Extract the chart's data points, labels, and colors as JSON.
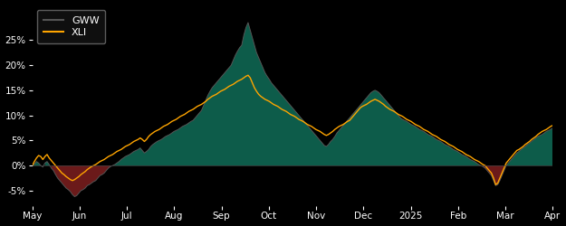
{
  "background_color": "#000000",
  "plot_bg_color": "#000000",
  "gww_color": "#555555",
  "xli_color": "#FFA500",
  "fill_positive_color": "#0d5c4a",
  "fill_negative_color": "#6b1a1a",
  "zero_line_color": "#444444",
  "legend_gww": "GWW",
  "legend_xli": "XLI",
  "x_tick_labels": [
    "May",
    "Jun",
    "Jul",
    "Aug",
    "Sep",
    "Oct",
    "Nov",
    "Dec",
    "2025",
    "Feb",
    "Mar",
    "Apr"
  ],
  "ylim": [
    -0.08,
    0.32
  ],
  "yticks": [
    -0.05,
    0.0,
    0.05,
    0.1,
    0.15,
    0.2,
    0.25
  ],
  "gww_data": [
    0.0,
    0.003,
    0.008,
    0.005,
    0.0,
    -0.003,
    0.005,
    0.008,
    0.002,
    -0.005,
    -0.01,
    -0.018,
    -0.025,
    -0.03,
    -0.035,
    -0.04,
    -0.045,
    -0.048,
    -0.052,
    -0.058,
    -0.062,
    -0.06,
    -0.055,
    -0.05,
    -0.048,
    -0.045,
    -0.04,
    -0.038,
    -0.035,
    -0.032,
    -0.03,
    -0.025,
    -0.02,
    -0.018,
    -0.015,
    -0.01,
    -0.005,
    -0.002,
    0.0,
    0.002,
    0.005,
    0.008,
    0.012,
    0.015,
    0.018,
    0.02,
    0.022,
    0.025,
    0.028,
    0.03,
    0.032,
    0.035,
    0.03,
    0.025,
    0.028,
    0.032,
    0.038,
    0.042,
    0.045,
    0.048,
    0.05,
    0.052,
    0.055,
    0.058,
    0.06,
    0.062,
    0.065,
    0.068,
    0.07,
    0.072,
    0.075,
    0.078,
    0.08,
    0.082,
    0.085,
    0.088,
    0.09,
    0.095,
    0.1,
    0.105,
    0.11,
    0.12,
    0.13,
    0.14,
    0.148,
    0.155,
    0.16,
    0.165,
    0.17,
    0.175,
    0.18,
    0.185,
    0.19,
    0.195,
    0.2,
    0.21,
    0.22,
    0.228,
    0.235,
    0.24,
    0.26,
    0.275,
    0.285,
    0.27,
    0.255,
    0.24,
    0.225,
    0.215,
    0.205,
    0.195,
    0.185,
    0.178,
    0.172,
    0.165,
    0.16,
    0.155,
    0.15,
    0.145,
    0.14,
    0.135,
    0.13,
    0.125,
    0.12,
    0.115,
    0.11,
    0.105,
    0.1,
    0.095,
    0.09,
    0.085,
    0.08,
    0.075,
    0.07,
    0.065,
    0.06,
    0.055,
    0.05,
    0.045,
    0.04,
    0.038,
    0.042,
    0.048,
    0.052,
    0.058,
    0.065,
    0.07,
    0.075,
    0.08,
    0.085,
    0.09,
    0.095,
    0.1,
    0.105,
    0.11,
    0.115,
    0.12,
    0.125,
    0.13,
    0.135,
    0.14,
    0.145,
    0.148,
    0.15,
    0.148,
    0.145,
    0.14,
    0.135,
    0.13,
    0.125,
    0.12,
    0.115,
    0.11,
    0.105,
    0.1,
    0.095,
    0.092,
    0.09,
    0.088,
    0.085,
    0.082,
    0.08,
    0.078,
    0.075,
    0.072,
    0.07,
    0.068,
    0.065,
    0.062,
    0.06,
    0.058,
    0.055,
    0.052,
    0.05,
    0.048,
    0.045,
    0.042,
    0.04,
    0.038,
    0.035,
    0.032,
    0.03,
    0.028,
    0.025,
    0.022,
    0.02,
    0.018,
    0.015,
    0.012,
    0.01,
    0.008,
    0.005,
    0.002,
    0.0,
    -0.002,
    -0.005,
    -0.01,
    -0.015,
    -0.02,
    -0.03,
    -0.04,
    -0.038,
    -0.03,
    -0.02,
    -0.01,
    0.0,
    0.005,
    0.01,
    0.015,
    0.02,
    0.025,
    0.028,
    0.032,
    0.035,
    0.038,
    0.042,
    0.045,
    0.048,
    0.052,
    0.055,
    0.058,
    0.06,
    0.062,
    0.065,
    0.068,
    0.07,
    0.072,
    0.075
  ],
  "xli_data": [
    0.0,
    0.008,
    0.015,
    0.02,
    0.018,
    0.012,
    0.018,
    0.022,
    0.015,
    0.01,
    0.005,
    0.0,
    -0.005,
    -0.01,
    -0.015,
    -0.018,
    -0.022,
    -0.025,
    -0.028,
    -0.03,
    -0.028,
    -0.025,
    -0.022,
    -0.018,
    -0.015,
    -0.012,
    -0.008,
    -0.005,
    -0.002,
    0.0,
    0.002,
    0.005,
    0.008,
    0.01,
    0.012,
    0.015,
    0.018,
    0.02,
    0.022,
    0.025,
    0.028,
    0.03,
    0.032,
    0.035,
    0.038,
    0.04,
    0.042,
    0.045,
    0.048,
    0.05,
    0.052,
    0.055,
    0.052,
    0.048,
    0.052,
    0.058,
    0.062,
    0.065,
    0.068,
    0.07,
    0.072,
    0.075,
    0.078,
    0.08,
    0.082,
    0.085,
    0.088,
    0.09,
    0.092,
    0.095,
    0.098,
    0.1,
    0.102,
    0.105,
    0.108,
    0.11,
    0.112,
    0.115,
    0.118,
    0.12,
    0.122,
    0.125,
    0.128,
    0.132,
    0.135,
    0.138,
    0.14,
    0.142,
    0.145,
    0.148,
    0.15,
    0.152,
    0.155,
    0.158,
    0.16,
    0.162,
    0.165,
    0.168,
    0.17,
    0.172,
    0.175,
    0.178,
    0.18,
    0.175,
    0.165,
    0.155,
    0.148,
    0.142,
    0.138,
    0.135,
    0.132,
    0.13,
    0.128,
    0.125,
    0.122,
    0.12,
    0.118,
    0.115,
    0.112,
    0.11,
    0.108,
    0.105,
    0.102,
    0.1,
    0.098,
    0.095,
    0.092,
    0.09,
    0.088,
    0.085,
    0.082,
    0.08,
    0.078,
    0.075,
    0.072,
    0.07,
    0.068,
    0.065,
    0.062,
    0.06,
    0.062,
    0.065,
    0.068,
    0.072,
    0.075,
    0.078,
    0.08,
    0.082,
    0.085,
    0.088,
    0.09,
    0.095,
    0.1,
    0.105,
    0.11,
    0.115,
    0.118,
    0.12,
    0.122,
    0.125,
    0.128,
    0.13,
    0.132,
    0.13,
    0.128,
    0.125,
    0.122,
    0.118,
    0.115,
    0.112,
    0.11,
    0.108,
    0.105,
    0.102,
    0.1,
    0.098,
    0.095,
    0.092,
    0.09,
    0.088,
    0.085,
    0.082,
    0.08,
    0.078,
    0.075,
    0.072,
    0.07,
    0.068,
    0.065,
    0.062,
    0.06,
    0.058,
    0.055,
    0.052,
    0.05,
    0.048,
    0.045,
    0.042,
    0.04,
    0.038,
    0.035,
    0.032,
    0.03,
    0.028,
    0.025,
    0.022,
    0.02,
    0.018,
    0.015,
    0.012,
    0.01,
    0.008,
    0.005,
    0.002,
    0.0,
    -0.005,
    -0.01,
    -0.015,
    -0.025,
    -0.038,
    -0.035,
    -0.025,
    -0.015,
    -0.005,
    0.005,
    0.01,
    0.015,
    0.02,
    0.025,
    0.03,
    0.032,
    0.035,
    0.038,
    0.042,
    0.045,
    0.048,
    0.052,
    0.055,
    0.058,
    0.062,
    0.065,
    0.068,
    0.07,
    0.072,
    0.075,
    0.078,
    0.08
  ]
}
